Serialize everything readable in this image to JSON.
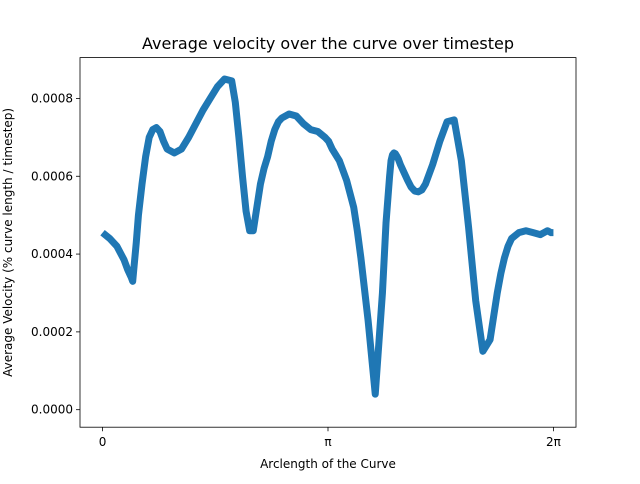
{
  "chart_data": {
    "type": "line",
    "title": "Average velocity over the curve over timestep",
    "xlabel": "Arclength of the Curve",
    "ylabel": "Average Velocity (% curve length / timestep)",
    "xlim": [
      -0.3142,
      6.5974
    ],
    "ylim": [
      -4.5e-05,
      0.000905
    ],
    "xticks": [
      {
        "value": 0,
        "label": "0"
      },
      {
        "value": 3.14159,
        "label": "π"
      },
      {
        "value": 6.28319,
        "label": "2π"
      }
    ],
    "yticks": [
      {
        "value": 0.0,
        "label": "0.0000"
      },
      {
        "value": 0.0002,
        "label": "0.0002"
      },
      {
        "value": 0.0004,
        "label": "0.0004"
      },
      {
        "value": 0.0006,
        "label": "0.0006"
      },
      {
        "value": 0.0008,
        "label": "0.0008"
      }
    ],
    "grid": false,
    "series": [
      {
        "color": "#1f77b4",
        "x": [
          0.0,
          0.1,
          0.2,
          0.3,
          0.35,
          0.4,
          0.42,
          0.44,
          0.47,
          0.5,
          0.55,
          0.6,
          0.65,
          0.7,
          0.75,
          0.8,
          0.85,
          0.9,
          1.0,
          1.1,
          1.2,
          1.3,
          1.4,
          1.5,
          1.6,
          1.7,
          1.8,
          1.85,
          1.9,
          1.95,
          2.0,
          2.05,
          2.1,
          2.15,
          2.2,
          2.25,
          2.3,
          2.35,
          2.4,
          2.45,
          2.5,
          2.6,
          2.7,
          2.8,
          2.9,
          3.0,
          3.1,
          3.15,
          3.2,
          3.3,
          3.4,
          3.5,
          3.55,
          3.6,
          3.7,
          3.8,
          3.9,
          3.95,
          4.0,
          4.02,
          4.04,
          4.06,
          4.08,
          4.1,
          4.12,
          4.15,
          4.2,
          4.25,
          4.3,
          4.35,
          4.4,
          4.45,
          4.5,
          4.6,
          4.7,
          4.8,
          4.9,
          5.0,
          5.1,
          5.2,
          5.3,
          5.4,
          5.45,
          5.5,
          5.55,
          5.6,
          5.65,
          5.7,
          5.8,
          5.9,
          6.0,
          6.1,
          6.15,
          6.2,
          6.25,
          6.283
        ],
        "y": [
          0.000455,
          0.00044,
          0.00042,
          0.000385,
          0.00036,
          0.00034,
          0.00033,
          0.00037,
          0.00043,
          0.0005,
          0.00058,
          0.00065,
          0.0007,
          0.00072,
          0.000725,
          0.000715,
          0.00069,
          0.00067,
          0.00066,
          0.00067,
          0.0007,
          0.000735,
          0.00077,
          0.0008,
          0.00083,
          0.00085,
          0.000845,
          0.00079,
          0.0007,
          0.0006,
          0.00051,
          0.00046,
          0.00046,
          0.00052,
          0.00058,
          0.00062,
          0.00065,
          0.00069,
          0.00072,
          0.00074,
          0.00075,
          0.00076,
          0.000755,
          0.000735,
          0.00072,
          0.000715,
          0.0007,
          0.00069,
          0.00067,
          0.00064,
          0.00059,
          0.00052,
          0.00046,
          0.00039,
          0.00023,
          4e-05,
          0.0003,
          0.00048,
          0.0006,
          0.00064,
          0.000655,
          0.00066,
          0.000658,
          0.000652,
          0.000645,
          0.00063,
          0.00061,
          0.00059,
          0.000572,
          0.000562,
          0.00056,
          0.000565,
          0.00058,
          0.00063,
          0.00069,
          0.00074,
          0.000745,
          0.00064,
          0.00047,
          0.00028,
          0.00015,
          0.00018,
          0.00024,
          0.0003,
          0.00035,
          0.00039,
          0.00042,
          0.00044,
          0.000455,
          0.00046,
          0.000455,
          0.00045,
          0.000455,
          0.00046,
          0.000455,
          0.000455
        ]
      }
    ]
  }
}
